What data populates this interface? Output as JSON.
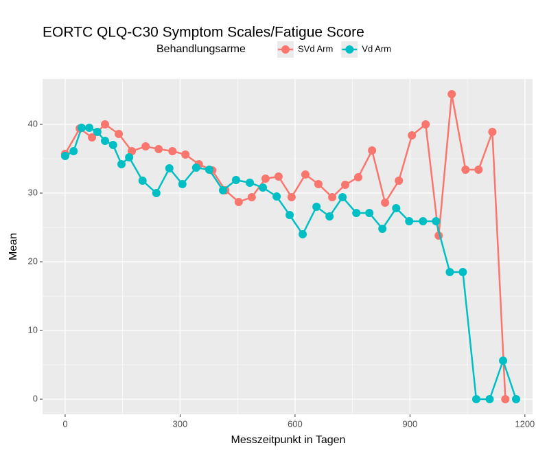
{
  "chart_data": {
    "type": "line",
    "title": "EORTC QLQ-C30 Symptom Scales/Fatigue Score",
    "legend_title": "Behandlungsarme",
    "x_label": "Messzeitpunkt in Tagen",
    "y_label": "Mean",
    "xlim": [
      -59,
      1220
    ],
    "ylim": [
      -2.2,
      46.6
    ],
    "xticks": [
      0,
      300,
      600,
      900,
      1200
    ],
    "yticks": [
      0,
      10,
      20,
      30,
      40
    ],
    "grid": true,
    "legend_position": "top",
    "series": [
      {
        "name": "SVd Arm",
        "color": "#F8766D",
        "x": [
          0,
          38,
          70,
          104,
          140,
          174,
          210,
          244,
          280,
          314,
          349,
          384,
          418,
          453,
          487,
          523,
          557,
          591,
          627,
          661,
          697,
          731,
          765,
          801,
          835,
          871,
          905,
          941,
          975,
          1009,
          1045,
          1079,
          1115,
          1149
        ],
        "values": [
          35.7,
          39.4,
          38.1,
          40,
          38.6,
          36.1,
          36.8,
          36.4,
          36.1,
          35.6,
          34.2,
          33.3,
          30.4,
          28.7,
          29.4,
          32.1,
          32.4,
          29.4,
          32.7,
          31.3,
          29.4,
          31.2,
          32.3,
          36.2,
          28.6,
          31.8,
          38.4,
          40,
          23.8,
          44.4,
          33.4,
          33.4,
          38.9,
          0
        ]
      },
      {
        "name": "Vd Arm",
        "color": "#00BFC4",
        "x": [
          0,
          22,
          43,
          63,
          84,
          104,
          125,
          147,
          167,
          202,
          238,
          272,
          306,
          342,
          376,
          412,
          446,
          482,
          516,
          552,
          586,
          620,
          656,
          690,
          724,
          760,
          794,
          828,
          864,
          898,
          934,
          968,
          1004,
          1038,
          1073,
          1108,
          1143,
          1177
        ],
        "values": [
          35.4,
          36.1,
          39.5,
          39.5,
          38.9,
          37.6,
          37,
          34.2,
          35.2,
          31.8,
          30,
          33.6,
          31.3,
          33.7,
          33.4,
          30.4,
          31.9,
          31.5,
          30.8,
          29.5,
          26.8,
          24,
          28,
          26.6,
          29.4,
          27.1,
          27.1,
          24.8,
          27.8,
          25.9,
          25.9,
          25.9,
          18.5,
          18.5,
          0,
          0,
          5.6,
          0
        ]
      }
    ]
  }
}
